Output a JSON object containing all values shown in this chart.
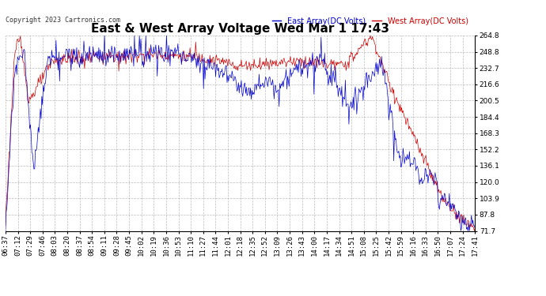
{
  "title": "East & West Array Voltage Wed Mar 1 17:43",
  "copyright": "Copyright 2023 Cartronics.com",
  "legend_east": "East Array(DC Volts)",
  "legend_west": "West Array(DC Volts)",
  "east_color": "#0000cc",
  "west_color": "#cc0000",
  "background_color": "#ffffff",
  "grid_color": "#aaaaaa",
  "ymin": 71.7,
  "ymax": 264.8,
  "yticks": [
    71.7,
    87.8,
    103.9,
    120.0,
    136.1,
    152.2,
    168.3,
    184.4,
    200.5,
    216.6,
    232.7,
    248.8,
    264.8
  ],
  "xtick_labels": [
    "06:37",
    "07:12",
    "07:29",
    "07:46",
    "08:03",
    "08:20",
    "08:37",
    "08:54",
    "09:11",
    "09:28",
    "09:45",
    "10:02",
    "10:19",
    "10:36",
    "10:53",
    "11:10",
    "11:27",
    "11:44",
    "12:01",
    "12:18",
    "12:35",
    "12:52",
    "13:09",
    "13:26",
    "13:43",
    "14:00",
    "14:17",
    "14:34",
    "14:51",
    "15:08",
    "15:25",
    "15:42",
    "15:59",
    "16:16",
    "16:33",
    "16:50",
    "17:07",
    "17:24",
    "17:41"
  ],
  "title_fontsize": 11,
  "label_fontsize": 7,
  "tick_fontsize": 6.5,
  "copyright_fontsize": 6
}
